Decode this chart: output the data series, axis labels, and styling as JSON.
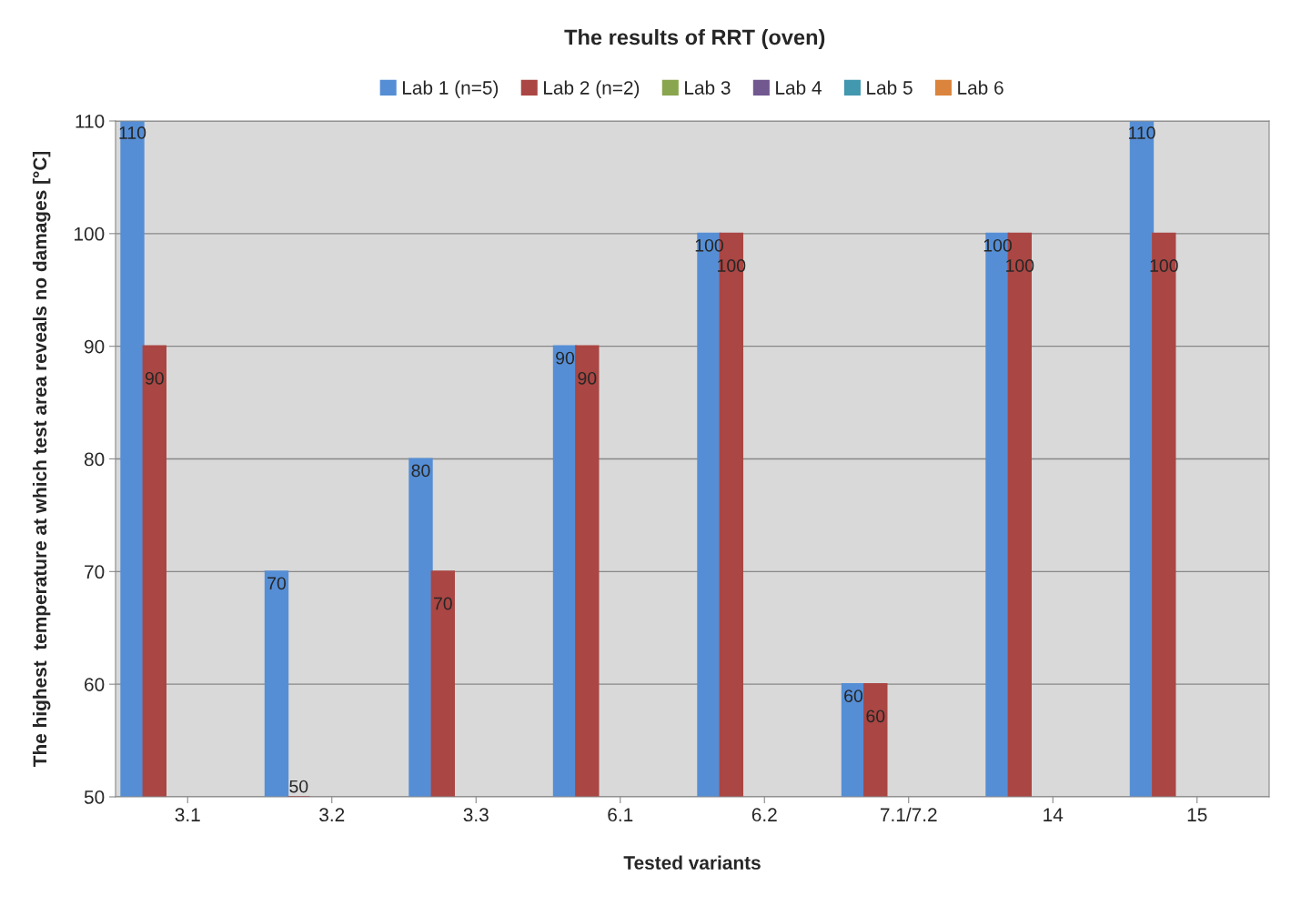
{
  "chart_data": {
    "type": "bar",
    "title": "The results of RRT (oven)",
    "xlabel": "Tested variants",
    "ylabel": "The highest  temperature at which test area reveals no damages [°C]",
    "categories": [
      "3.1",
      "3.2",
      "3.3",
      "6.1",
      "6.2",
      "7.1/7.2",
      "14",
      "15"
    ],
    "series": [
      {
        "name": "Lab 1 (n=5)",
        "color": "#558ed5",
        "values": [
          110,
          70,
          80,
          90,
          100,
          60,
          100,
          110
        ]
      },
      {
        "name": "Lab 2 (n=2)",
        "color": "#aa4643",
        "values": [
          90,
          50,
          70,
          90,
          100,
          60,
          100,
          100
        ]
      },
      {
        "name": "Lab 3",
        "color": "#89a54e",
        "values": [
          null,
          null,
          null,
          null,
          null,
          null,
          null,
          null
        ]
      },
      {
        "name": "Lab 4",
        "color": "#71588f",
        "values": [
          null,
          null,
          null,
          null,
          null,
          null,
          null,
          null
        ]
      },
      {
        "name": "Lab 5",
        "color": "#4198af",
        "values": [
          null,
          null,
          null,
          null,
          null,
          null,
          null,
          null
        ]
      },
      {
        "name": "Lab 6",
        "color": "#db843d",
        "values": [
          null,
          null,
          null,
          null,
          null,
          null,
          null,
          null
        ]
      }
    ],
    "ylim": [
      50,
      110
    ],
    "yticks": [
      50,
      60,
      70,
      80,
      90,
      100,
      110
    ],
    "grid": "y",
    "legend": "top",
    "data_labels": true
  }
}
